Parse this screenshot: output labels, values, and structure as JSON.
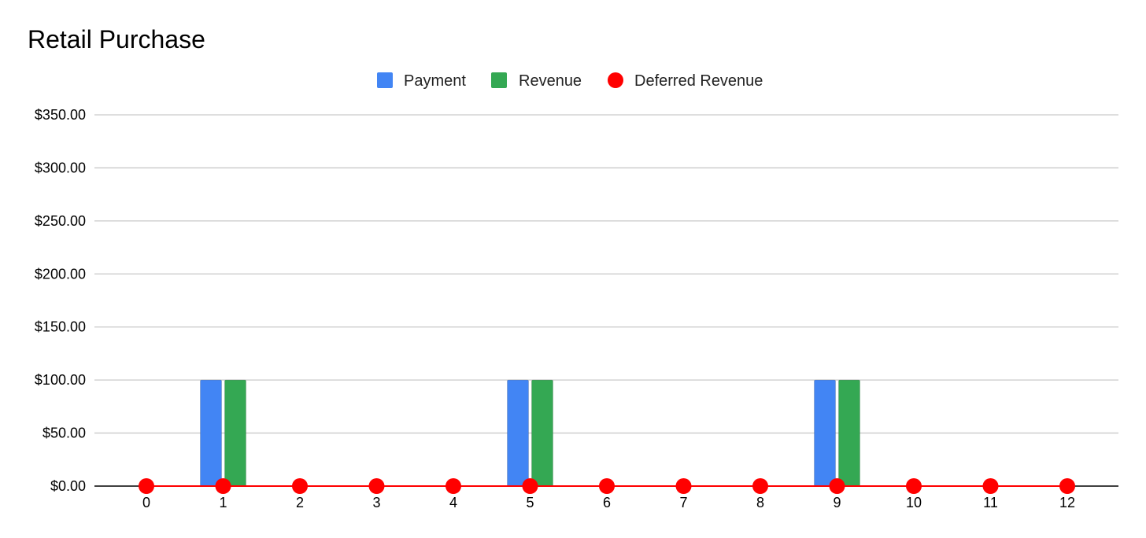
{
  "chart_data": {
    "type": "bar",
    "title": "Retail Purchase",
    "xlabel": "",
    "ylabel": "",
    "categories": [
      "0",
      "1",
      "2",
      "3",
      "4",
      "5",
      "6",
      "7",
      "8",
      "9",
      "10",
      "11",
      "12"
    ],
    "series": [
      {
        "name": "Payment",
        "kind": "bar",
        "color": "#4285F4",
        "values": [
          0,
          100,
          0,
          0,
          0,
          100,
          0,
          0,
          0,
          100,
          0,
          0,
          0
        ]
      },
      {
        "name": "Revenue",
        "kind": "bar",
        "color": "#34A853",
        "values": [
          0,
          100,
          0,
          0,
          0,
          100,
          0,
          0,
          0,
          100,
          0,
          0,
          0
        ]
      },
      {
        "name": "Deferred Revenue",
        "kind": "line-with-markers",
        "color": "#FF0000",
        "values": [
          0,
          0,
          0,
          0,
          0,
          0,
          0,
          0,
          0,
          0,
          0,
          0,
          0
        ]
      }
    ],
    "ylim": [
      0,
      350
    ],
    "y_ticks": [
      0,
      50,
      100,
      150,
      200,
      250,
      300,
      350
    ],
    "y_tick_labels": [
      "$0.00",
      "$50.00",
      "$100.00",
      "$150.00",
      "$200.00",
      "$250.00",
      "$300.00",
      "$350.00"
    ],
    "legend_position": "top-center",
    "grid": true
  }
}
